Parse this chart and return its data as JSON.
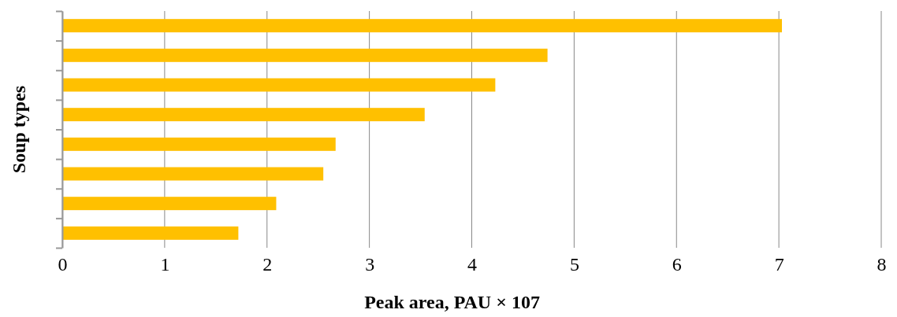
{
  "chart_data": {
    "type": "bar",
    "orientation": "horizontal",
    "xlabel": "Peak area, PAU × 107",
    "ylabel": "Soup types",
    "categories": [
      null,
      null,
      null,
      null,
      null,
      null,
      null,
      null
    ],
    "values": [
      7.03,
      4.74,
      4.23,
      3.54,
      2.67,
      2.55,
      2.09,
      1.72
    ],
    "color": "#ffc000",
    "xlim": [
      0,
      8
    ],
    "xticks": [
      0,
      1,
      2,
      3,
      4,
      5,
      6,
      7,
      8
    ],
    "grid": "x"
  }
}
